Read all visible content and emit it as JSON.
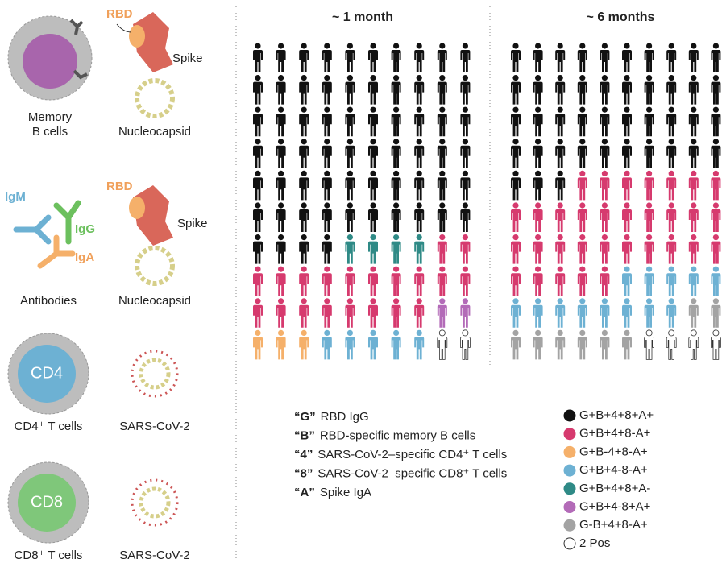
{
  "left": {
    "row1": {
      "rbd": "RBD",
      "spike": "Spike",
      "nucleocapsid": "Nucleocapsid",
      "cell_line1": "Memory",
      "cell_line2": "B cells"
    },
    "row2": {
      "igm": "IgM",
      "igg": "IgG",
      "iga": "IgA",
      "caption": "Antibodies",
      "rbd": "RBD",
      "spike": "Spike",
      "nucleocapsid": "Nucleocapsid"
    },
    "row3": {
      "cell": "CD4",
      "caption": "CD4⁺ T cells",
      "virus": "SARS-CoV-2"
    },
    "row4": {
      "cell": "CD8",
      "caption": "CD8⁺ T cells",
      "virus": "SARS-CoV-2"
    }
  },
  "panels": [
    {
      "title": "~ 1 month",
      "counts": [
        64,
        20,
        3,
        5,
        4,
        2,
        0,
        2
      ]
    },
    {
      "title": "~ 6 months",
      "counts": [
        43,
        32,
        0,
        13,
        0,
        0,
        8,
        4
      ]
    }
  ],
  "keys": [
    {
      "code": "“G”",
      "text": "RBD IgG"
    },
    {
      "code": "“B”",
      "text": "RBD-specific memory B cells"
    },
    {
      "code": "“4”",
      "text": "SARS-CoV-2–specific CD4⁺ T cells"
    },
    {
      "code": "“8”",
      "text": "SARS-CoV-2–specific CD8⁺ T cells"
    },
    {
      "code": "“A”",
      "text": "Spike IgA"
    }
  ],
  "legend": [
    {
      "label": "G+B+4+8+A+",
      "color": "#111111"
    },
    {
      "label": "G+B+4+8-A+",
      "color": "#d63a6e"
    },
    {
      "label": "G+B-4+8-A+",
      "color": "#f5b06a"
    },
    {
      "label": "G+B+4-8-A+",
      "color": "#6db1d3"
    },
    {
      "label": "G+B+4+8+A-",
      "color": "#2f8a86"
    },
    {
      "label": "G+B+4-8+A+",
      "color": "#b36bb8"
    },
    {
      "label": "G-B+4+8-A+",
      "color": "#a3a3a3"
    },
    {
      "label": "2 Pos",
      "color": "#ffffff"
    }
  ]
}
